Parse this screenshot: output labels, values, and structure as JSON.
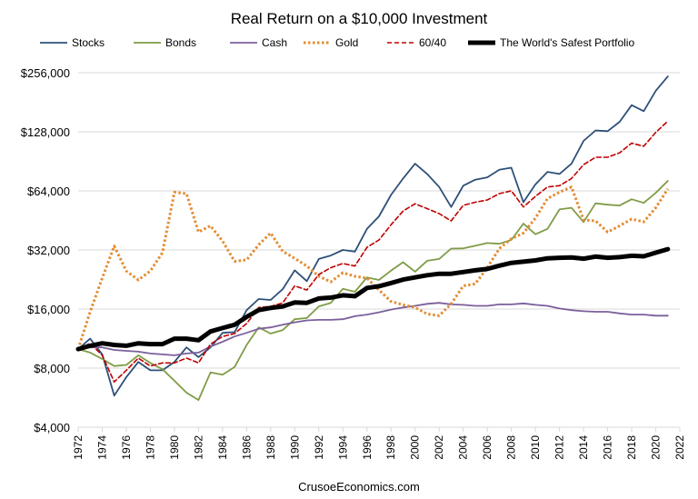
{
  "chart_data": {
    "type": "line",
    "title": "Real Return on a $10,000 Investment",
    "footer": "CrusoeEconomics.com",
    "y_scale": "log2",
    "ylim": [
      4000,
      256000
    ],
    "y_ticks": [
      4000,
      8000,
      16000,
      32000,
      64000,
      128000,
      256000
    ],
    "y_tick_labels": [
      "$4,000",
      "$8,000",
      "$16,000",
      "$32,000",
      "$64,000",
      "$128,000",
      "$256,000"
    ],
    "xlim": [
      1972,
      2022
    ],
    "x_ticks": [
      1972,
      1974,
      1976,
      1978,
      1980,
      1982,
      1984,
      1986,
      1988,
      1990,
      1992,
      1994,
      1996,
      1998,
      2000,
      2002,
      2004,
      2006,
      2008,
      2010,
      2012,
      2014,
      2016,
      2018,
      2020,
      2022
    ],
    "x_tick_labels": [
      "1972",
      "1974",
      "1976",
      "1978",
      "1980",
      "1982",
      "1984",
      "1986",
      "1988",
      "1990",
      "1992",
      "1994",
      "1996",
      "1998",
      "2000",
      "2002",
      "2004",
      "2006",
      "2008",
      "2010",
      "2012",
      "2014",
      "2016",
      "2018",
      "2020",
      "2022"
    ],
    "grid": "horizontal",
    "legend": "top",
    "x": [
      1972,
      1973,
      1974,
      1975,
      1976,
      1977,
      1978,
      1979,
      1980,
      1981,
      1982,
      1983,
      1984,
      1985,
      1986,
      1987,
      1988,
      1989,
      1990,
      1991,
      1992,
      1993,
      1994,
      1995,
      1996,
      1997,
      1998,
      1999,
      2000,
      2001,
      2002,
      2003,
      2004,
      2005,
      2006,
      2007,
      2008,
      2009,
      2010,
      2011,
      2012,
      2013,
      2014,
      2015,
      2016,
      2017,
      2018,
      2019,
      2020,
      2021
    ],
    "series": [
      {
        "name": "Stocks",
        "color": "#2e5079",
        "style": "solid",
        "width": 1.8,
        "values": [
          10000,
          11300,
          9400,
          5800,
          7200,
          8600,
          7800,
          7800,
          8600,
          10200,
          9100,
          10200,
          12100,
          12200,
          15800,
          18000,
          17800,
          20200,
          25200,
          22200,
          28800,
          30000,
          32000,
          31400,
          41000,
          47500,
          61000,
          74000,
          88000,
          78000,
          67000,
          53000,
          68000,
          73000,
          75000,
          82000,
          84000,
          56000,
          69000,
          80000,
          78000,
          88000,
          115000,
          130000,
          129000,
          144000,
          175000,
          163000,
          207000,
          245000
        ]
      },
      {
        "name": "Bonds",
        "color": "#7f9c46",
        "style": "solid",
        "width": 1.8,
        "values": [
          10000,
          9600,
          8900,
          8200,
          8300,
          9300,
          8500,
          7900,
          6900,
          6000,
          5500,
          7600,
          7400,
          8100,
          10500,
          12900,
          12000,
          12500,
          14200,
          14400,
          16500,
          17200,
          20300,
          19600,
          23200,
          22500,
          25100,
          27700,
          24800,
          28200,
          28800,
          32500,
          32600,
          33600,
          34700,
          34400,
          36000,
          43600,
          38500,
          41000,
          51500,
          52500,
          44400,
          55300,
          54400,
          53900,
          58000,
          55600,
          62500,
          72000
        ]
      },
      {
        "name": "Cash",
        "color": "#7b5f9b",
        "style": "solid",
        "width": 1.8,
        "values": [
          10000,
          10200,
          10200,
          9900,
          9800,
          9700,
          9500,
          9400,
          9300,
          9500,
          9600,
          10300,
          10900,
          11600,
          12100,
          12700,
          12900,
          13300,
          13700,
          14000,
          14100,
          14100,
          14200,
          14700,
          15000,
          15400,
          15900,
          16300,
          16600,
          17000,
          17200,
          16900,
          16800,
          16600,
          16600,
          16900,
          16900,
          17100,
          16800,
          16600,
          16100,
          15800,
          15600,
          15500,
          15500,
          15200,
          15000,
          15000,
          14800,
          14800
        ]
      },
      {
        "name": "Gold",
        "color": "#e38c33",
        "style": "dotted",
        "width": 3,
        "values": [
          10000,
          15500,
          23000,
          33500,
          25000,
          22500,
          25000,
          31000,
          63000,
          62000,
          39500,
          42500,
          35500,
          28000,
          28500,
          34000,
          39000,
          31500,
          29000,
          26500,
          23500,
          22000,
          24500,
          23500,
          23000,
          20000,
          17500,
          16800,
          16300,
          15100,
          14800,
          17000,
          21000,
          21500,
          26000,
          32500,
          36500,
          39000,
          46500,
          58500,
          63000,
          67000,
          45500,
          45000,
          39500,
          42500,
          46000,
          44500,
          52500,
          65500
        ]
      },
      {
        "name": "60/40",
        "color": "#c00000",
        "style": "dashed",
        "width": 1.6,
        "values": [
          10000,
          10700,
          9300,
          6800,
          7800,
          9000,
          8200,
          8500,
          8500,
          9000,
          8500,
          10600,
          11600,
          12000,
          13500,
          16300,
          16500,
          17200,
          21000,
          20000,
          24000,
          26000,
          27300,
          26500,
          33000,
          36000,
          43000,
          50500,
          55000,
          52000,
          49000,
          45000,
          54000,
          56000,
          57500,
          62000,
          64000,
          53000,
          60000,
          67000,
          68000,
          74000,
          87000,
          95000,
          95000,
          100000,
          112000,
          108000,
          127000,
          145000
        ]
      },
      {
        "name": "The World's Safest Portfolio",
        "color": "#000000",
        "style": "solid",
        "width": 5,
        "values": [
          10000,
          10400,
          10700,
          10500,
          10400,
          10700,
          10600,
          10600,
          11300,
          11300,
          11100,
          12300,
          12800,
          13300,
          14600,
          15800,
          16200,
          16500,
          17300,
          17200,
          18100,
          18300,
          18800,
          18600,
          20500,
          20900,
          21700,
          22600,
          23200,
          23800,
          24200,
          24200,
          24700,
          25200,
          25600,
          26600,
          27500,
          27900,
          28300,
          29000,
          29200,
          29300,
          28900,
          29600,
          29200,
          29400,
          29900,
          29700,
          31000,
          32300
        ]
      }
    ]
  }
}
